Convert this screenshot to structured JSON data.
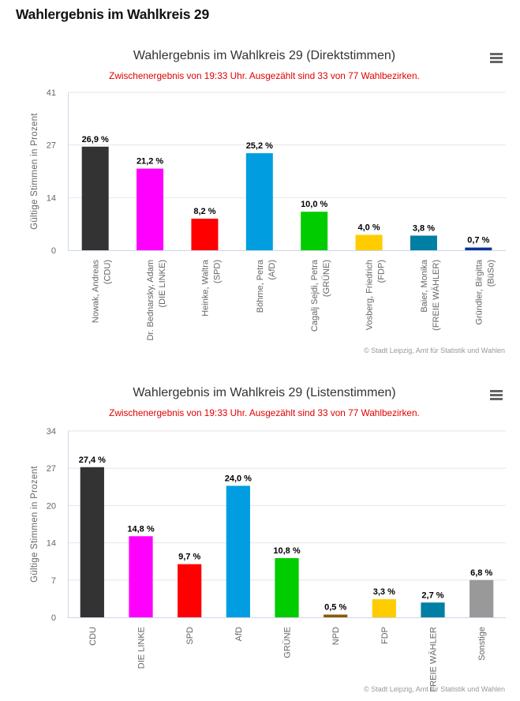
{
  "page": {
    "title": "Wahlergebnis im Wahlkreis 29"
  },
  "chart_menu": {
    "icon": "hamburger-menu-icon"
  },
  "chart_data": [
    {
      "type": "bar",
      "title": "Wahlergebnis im Wahlkreis 29 (Direktstimmen)",
      "subtitle": "Zwischenergebnis von 19:33 Uhr. Ausgezählt sind 33 von 77 Wahlbezirken.",
      "xlabel": "",
      "ylabel": "Gültige Stimmen in Prozent",
      "ylim": [
        0,
        41
      ],
      "yticks": [
        0,
        14,
        27,
        41
      ],
      "grid": true,
      "legend": "none",
      "categories": [
        "Nowak, Andreas\n(CDU)",
        "Dr. Bednarsky, Adam\n(DIE LINKE)",
        "Heinke, Waltra\n(SPD)",
        "Böhme, Petra\n(AfD)",
        "Cagalj Sejdi, Petra\n(GRÜNE)",
        "Vosberg, Friedrich\n(FDP)",
        "Baier, Monika\n(FREIE WÄHLER)",
        "Gründler, Birgitta\n(BüSo)"
      ],
      "values": [
        26.9,
        21.2,
        8.2,
        25.2,
        10.0,
        4.0,
        3.8,
        0.7
      ],
      "data_labels": [
        "26,9 %",
        "21,2 %",
        "8,2 %",
        "25,2 %",
        "10,0 %",
        "4,0 %",
        "3,8 %",
        "0,7 %"
      ],
      "colors": [
        "#333333",
        "#ff00ff",
        "#ff0000",
        "#009ee0",
        "#00cc00",
        "#ffcc00",
        "#007fa4",
        "#003399"
      ],
      "credits": "© Stadt Leipzig, Amt für Statistik und Wahlen"
    },
    {
      "type": "bar",
      "title": "Wahlergebnis im Wahlkreis 29 (Listenstimmen)",
      "subtitle": "Zwischenergebnis von 19:33 Uhr. Ausgezählt sind 33 von 77 Wahlbezirken.",
      "xlabel": "",
      "ylabel": "Gültige Stimmen in Prozent",
      "ylim": [
        0,
        34
      ],
      "yticks": [
        0,
        7,
        14,
        20,
        27,
        34
      ],
      "grid": true,
      "legend": "none",
      "categories": [
        "CDU",
        "DIE LINKE",
        "SPD",
        "AfD",
        "GRÜNE",
        "NPD",
        "FDP",
        "FREIE WÄHLER",
        "Sonstige"
      ],
      "values": [
        27.4,
        14.8,
        9.7,
        24.0,
        10.8,
        0.5,
        3.3,
        2.7,
        6.8
      ],
      "data_labels": [
        "27,4 %",
        "14,8 %",
        "9,7 %",
        "24,0 %",
        "10,8 %",
        "0,5 %",
        "3,3 %",
        "2,7 %",
        "6,8 %"
      ],
      "colors": [
        "#333333",
        "#ff00ff",
        "#ff0000",
        "#009ee0",
        "#00cc00",
        "#8b5a00",
        "#ffcc00",
        "#007fa4",
        "#999999"
      ],
      "credits": "© Stadt Leipzig, Amt für Statistik und Wahlen"
    }
  ]
}
